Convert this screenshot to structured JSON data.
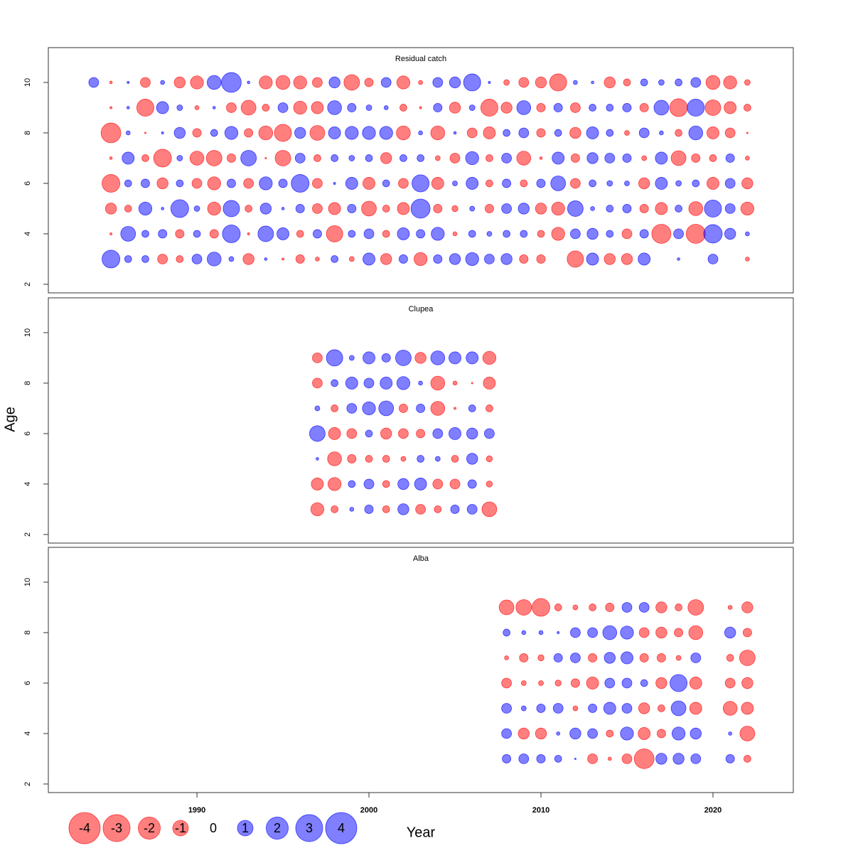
{
  "chart_data": {
    "type": "bubble",
    "xlabel": "Year",
    "ylabel": "Age",
    "xlim": [
      1981.36,
      2024.67
    ],
    "xticks": [
      1990,
      2000,
      2010,
      2020
    ],
    "ylim": [
      1.66,
      11.38
    ],
    "yticks": [
      2,
      4,
      6,
      8,
      10
    ],
    "colors": {
      "negative": "#ff0000",
      "positive": "#0000ff"
    },
    "legend": [
      -4,
      -3,
      -2,
      -1,
      0,
      1,
      2,
      3,
      4
    ],
    "panels": [
      {
        "title": "Residual catch",
        "x": [
          1984,
          1985,
          1986,
          1987,
          1988,
          1989,
          1990,
          1991,
          1992,
          1993,
          1994,
          1995,
          1996,
          1997,
          1998,
          1999,
          2000,
          2001,
          2002,
          2003,
          2004,
          2005,
          2006,
          2007,
          2008,
          2009,
          2010,
          2011,
          2012,
          2013,
          2014,
          2015,
          2016,
          2017,
          2018,
          2019,
          2020,
          2021,
          2022
        ],
        "y": [
          3,
          4,
          5,
          6,
          7,
          8,
          9,
          10
        ],
        "values": [
          [
            0,
            1.3,
            0.2,
            0.2,
            -0.4,
            -0.2,
            0.4,
            0.8,
            0.1,
            -0.5,
            0.03,
            -0.02,
            -0.3,
            -0.07,
            0.2,
            -0.1,
            0.6,
            -0.5,
            0.3,
            -0.7,
            0.3,
            0.5,
            0.7,
            0.4,
            0.5,
            -0.3,
            -0.3,
            0,
            -1.1,
            0.6,
            -0.5,
            -0.5,
            0.6,
            0,
            0.03,
            0,
            0.4,
            0,
            -0.07
          ],
          [
            0,
            -0.02,
            0.9,
            0.2,
            0.3,
            -0.3,
            0.2,
            -0.3,
            1.3,
            -0.02,
            1.0,
            0.6,
            -0.2,
            0.3,
            -1.1,
            0.2,
            0.4,
            -0.2,
            0.6,
            0.3,
            0.7,
            -0.07,
            0.2,
            0.1,
            0.2,
            0.2,
            -0.2,
            -0.7,
            0.4,
            0.5,
            0.2,
            -0.4,
            0.3,
            -1.5,
            0.4,
            -1.5,
            1.4,
            0.5,
            0.07
          ],
          [
            0,
            -0.5,
            -0.2,
            0.7,
            0.03,
            1.3,
            0.13,
            -0.7,
            1.1,
            -0.2,
            0.5,
            0.03,
            0.3,
            -0.4,
            -0.6,
            0.3,
            -0.9,
            -0.2,
            -0.6,
            1.5,
            -0.3,
            -0.15,
            0.1,
            -0.3,
            0.4,
            0.5,
            -0.5,
            -0.7,
            1.0,
            0.07,
            0.2,
            0.3,
            -0.3,
            -0.6,
            0.2,
            -0.8,
            1.2,
            0.4,
            -0.7
          ],
          [
            0,
            -1.3,
            0.2,
            0.3,
            -0.5,
            0.2,
            -0.4,
            -0.7,
            0.3,
            -0.4,
            0.7,
            0.3,
            1.3,
            -0.4,
            0.02,
            0.6,
            -0.6,
            0.2,
            -0.4,
            1.2,
            -0.6,
            0.1,
            0.6,
            -0.2,
            0.3,
            -0.2,
            0.3,
            0.9,
            -0.4,
            0.2,
            0.13,
            0.1,
            -0.5,
            0.6,
            0.13,
            0.2,
            -0.6,
            0.4,
            -0.5
          ],
          [
            0,
            -0.03,
            0.6,
            -0.2,
            -1.3,
            0.13,
            -0.8,
            -1.0,
            -0.3,
            1.0,
            -0.01,
            -1.0,
            0.4,
            -0.2,
            0.2,
            0.13,
            0.2,
            -0.5,
            0.2,
            0.2,
            -0.1,
            -0.4,
            0.7,
            -0.2,
            0.4,
            -0.8,
            -0.03,
            0.6,
            -0.3,
            0.5,
            0.4,
            0.3,
            -0.1,
            0.6,
            -0.9,
            -0.3,
            -0.2,
            0.3,
            -0.07
          ],
          [
            0,
            -1.6,
            0.07,
            -0.01,
            0.02,
            0.5,
            -0.3,
            0.2,
            0.7,
            -0.3,
            -0.8,
            -1.2,
            0.5,
            -0.9,
            0.6,
            0.7,
            0.7,
            0.7,
            -0.8,
            0.07,
            -0.8,
            0.03,
            -0.4,
            -0.6,
            0.2,
            0.4,
            -0.3,
            0.2,
            -0.5,
            0.6,
            0.2,
            -0.1,
            0.4,
            0.07,
            -0.2,
            0.8,
            -0.6,
            -0.4,
            -0.01
          ],
          [
            0,
            -0.02,
            0.03,
            -1.2,
            0.6,
            0.13,
            -0.07,
            0.03,
            -0.4,
            -0.9,
            -0.2,
            0.4,
            -0.7,
            -0.6,
            0.8,
            0.3,
            0.13,
            0.07,
            -0.2,
            -0.02,
            0.3,
            -0.5,
            0.13,
            -1.2,
            -0.5,
            0.8,
            -0.3,
            0.3,
            -0.4,
            0.2,
            0.2,
            0.3,
            -0.3,
            0.9,
            -1.3,
            1.2,
            -1.0,
            -0.6,
            -0.2
          ],
          [
            0.4,
            -0.03,
            0.02,
            -0.4,
            0.07,
            -0.5,
            -0.7,
            0.8,
            1.6,
            0.03,
            -0.7,
            -0.8,
            -0.7,
            -0.4,
            0.5,
            -1.0,
            -0.3,
            0.4,
            -0.7,
            -0.07,
            0.4,
            0.5,
            1.2,
            0.02,
            -0.13,
            -0.4,
            -0.5,
            -1.2,
            0.07,
            0.03,
            -0.5,
            -0.2,
            0.2,
            0.13,
            0.2,
            0.4,
            -0.8,
            -0.7,
            -0.13
          ]
        ]
      },
      {
        "title": "Clupea",
        "x": [
          1997,
          1998,
          1999,
          2000,
          2001,
          2002,
          2003,
          2004,
          2005,
          2006,
          2007
        ],
        "y": [
          3,
          4,
          5,
          6,
          7,
          8,
          9
        ],
        "values": [
          [
            -0.7,
            -0.2,
            0.07,
            0.3,
            -0.2,
            0.5,
            -0.4,
            -0.2,
            0.3,
            0.4,
            -0.9
          ],
          [
            -0.6,
            -0.7,
            0.2,
            0.4,
            -0.2,
            0.5,
            0.6,
            -0.4,
            -0.4,
            0.3,
            -0.15
          ],
          [
            0.03,
            -0.8,
            -0.3,
            -0.2,
            -0.2,
            -0.1,
            0.2,
            0.1,
            -0.2,
            0.5,
            -0.15
          ],
          [
            1.0,
            -0.6,
            -0.4,
            0.2,
            -0.5,
            -0.4,
            -0.3,
            0.4,
            0.6,
            0.5,
            0.4
          ],
          [
            0.1,
            -0.2,
            0.4,
            0.7,
            0.9,
            -0.3,
            0.3,
            -0.8,
            -0.02,
            0.2,
            -0.2
          ],
          [
            -0.4,
            0.2,
            0.6,
            0.4,
            0.6,
            0.7,
            0.07,
            -0.8,
            -0.07,
            -0.01,
            -0.6
          ],
          [
            -0.4,
            1.1,
            0.1,
            0.6,
            0.3,
            1.0,
            -0.5,
            0.8,
            0.6,
            0.6,
            -0.7
          ]
        ]
      },
      {
        "title": "Alba",
        "x": [
          2008,
          2009,
          2010,
          2011,
          2012,
          2013,
          2014,
          2015,
          2016,
          2017,
          2018,
          2019,
          2020,
          2021,
          2022
        ],
        "y": [
          3,
          4,
          5,
          6,
          7,
          8,
          9
        ],
        "values": [
          [
            0.3,
            0.4,
            0.3,
            0.2,
            0.01,
            -0.4,
            -0.05,
            -0.4,
            -1.6,
            0.5,
            0.5,
            0.4,
            null,
            0.3,
            -0.2
          ],
          [
            0.4,
            -0.5,
            -0.5,
            0.05,
            0.5,
            0.4,
            -0.2,
            0.7,
            -0.6,
            -0.3,
            0.7,
            0.5,
            null,
            0.05,
            -0.9
          ],
          [
            0.4,
            0.1,
            0.3,
            0.4,
            -0.1,
            0.3,
            0.6,
            0.4,
            -0.5,
            -0.2,
            0.9,
            -0.6,
            null,
            -0.8,
            -0.6
          ],
          [
            -0.4,
            -0.1,
            -0.1,
            -0.15,
            -0.3,
            -0.6,
            0.4,
            0.4,
            0.2,
            -0.5,
            1.2,
            -0.6,
            null,
            -0.4,
            -0.5
          ],
          [
            -0.07,
            -0.3,
            -0.15,
            0.3,
            0.4,
            -0.3,
            0.5,
            0.6,
            -0.3,
            -0.3,
            -0.1,
            0.4,
            null,
            -0.2,
            -1.0
          ],
          [
            0.2,
            0.07,
            0.07,
            0.02,
            0.4,
            0.4,
            0.8,
            0.7,
            -0.4,
            -0.5,
            -0.3,
            -0.8,
            null,
            0.5,
            -0.3
          ],
          [
            -0.9,
            -1.0,
            -1.3,
            -0.2,
            -0.1,
            -0.2,
            -0.3,
            0.4,
            0.4,
            -0.5,
            -0.2,
            -1.0,
            null,
            -0.07,
            -0.5
          ]
        ]
      }
    ]
  }
}
